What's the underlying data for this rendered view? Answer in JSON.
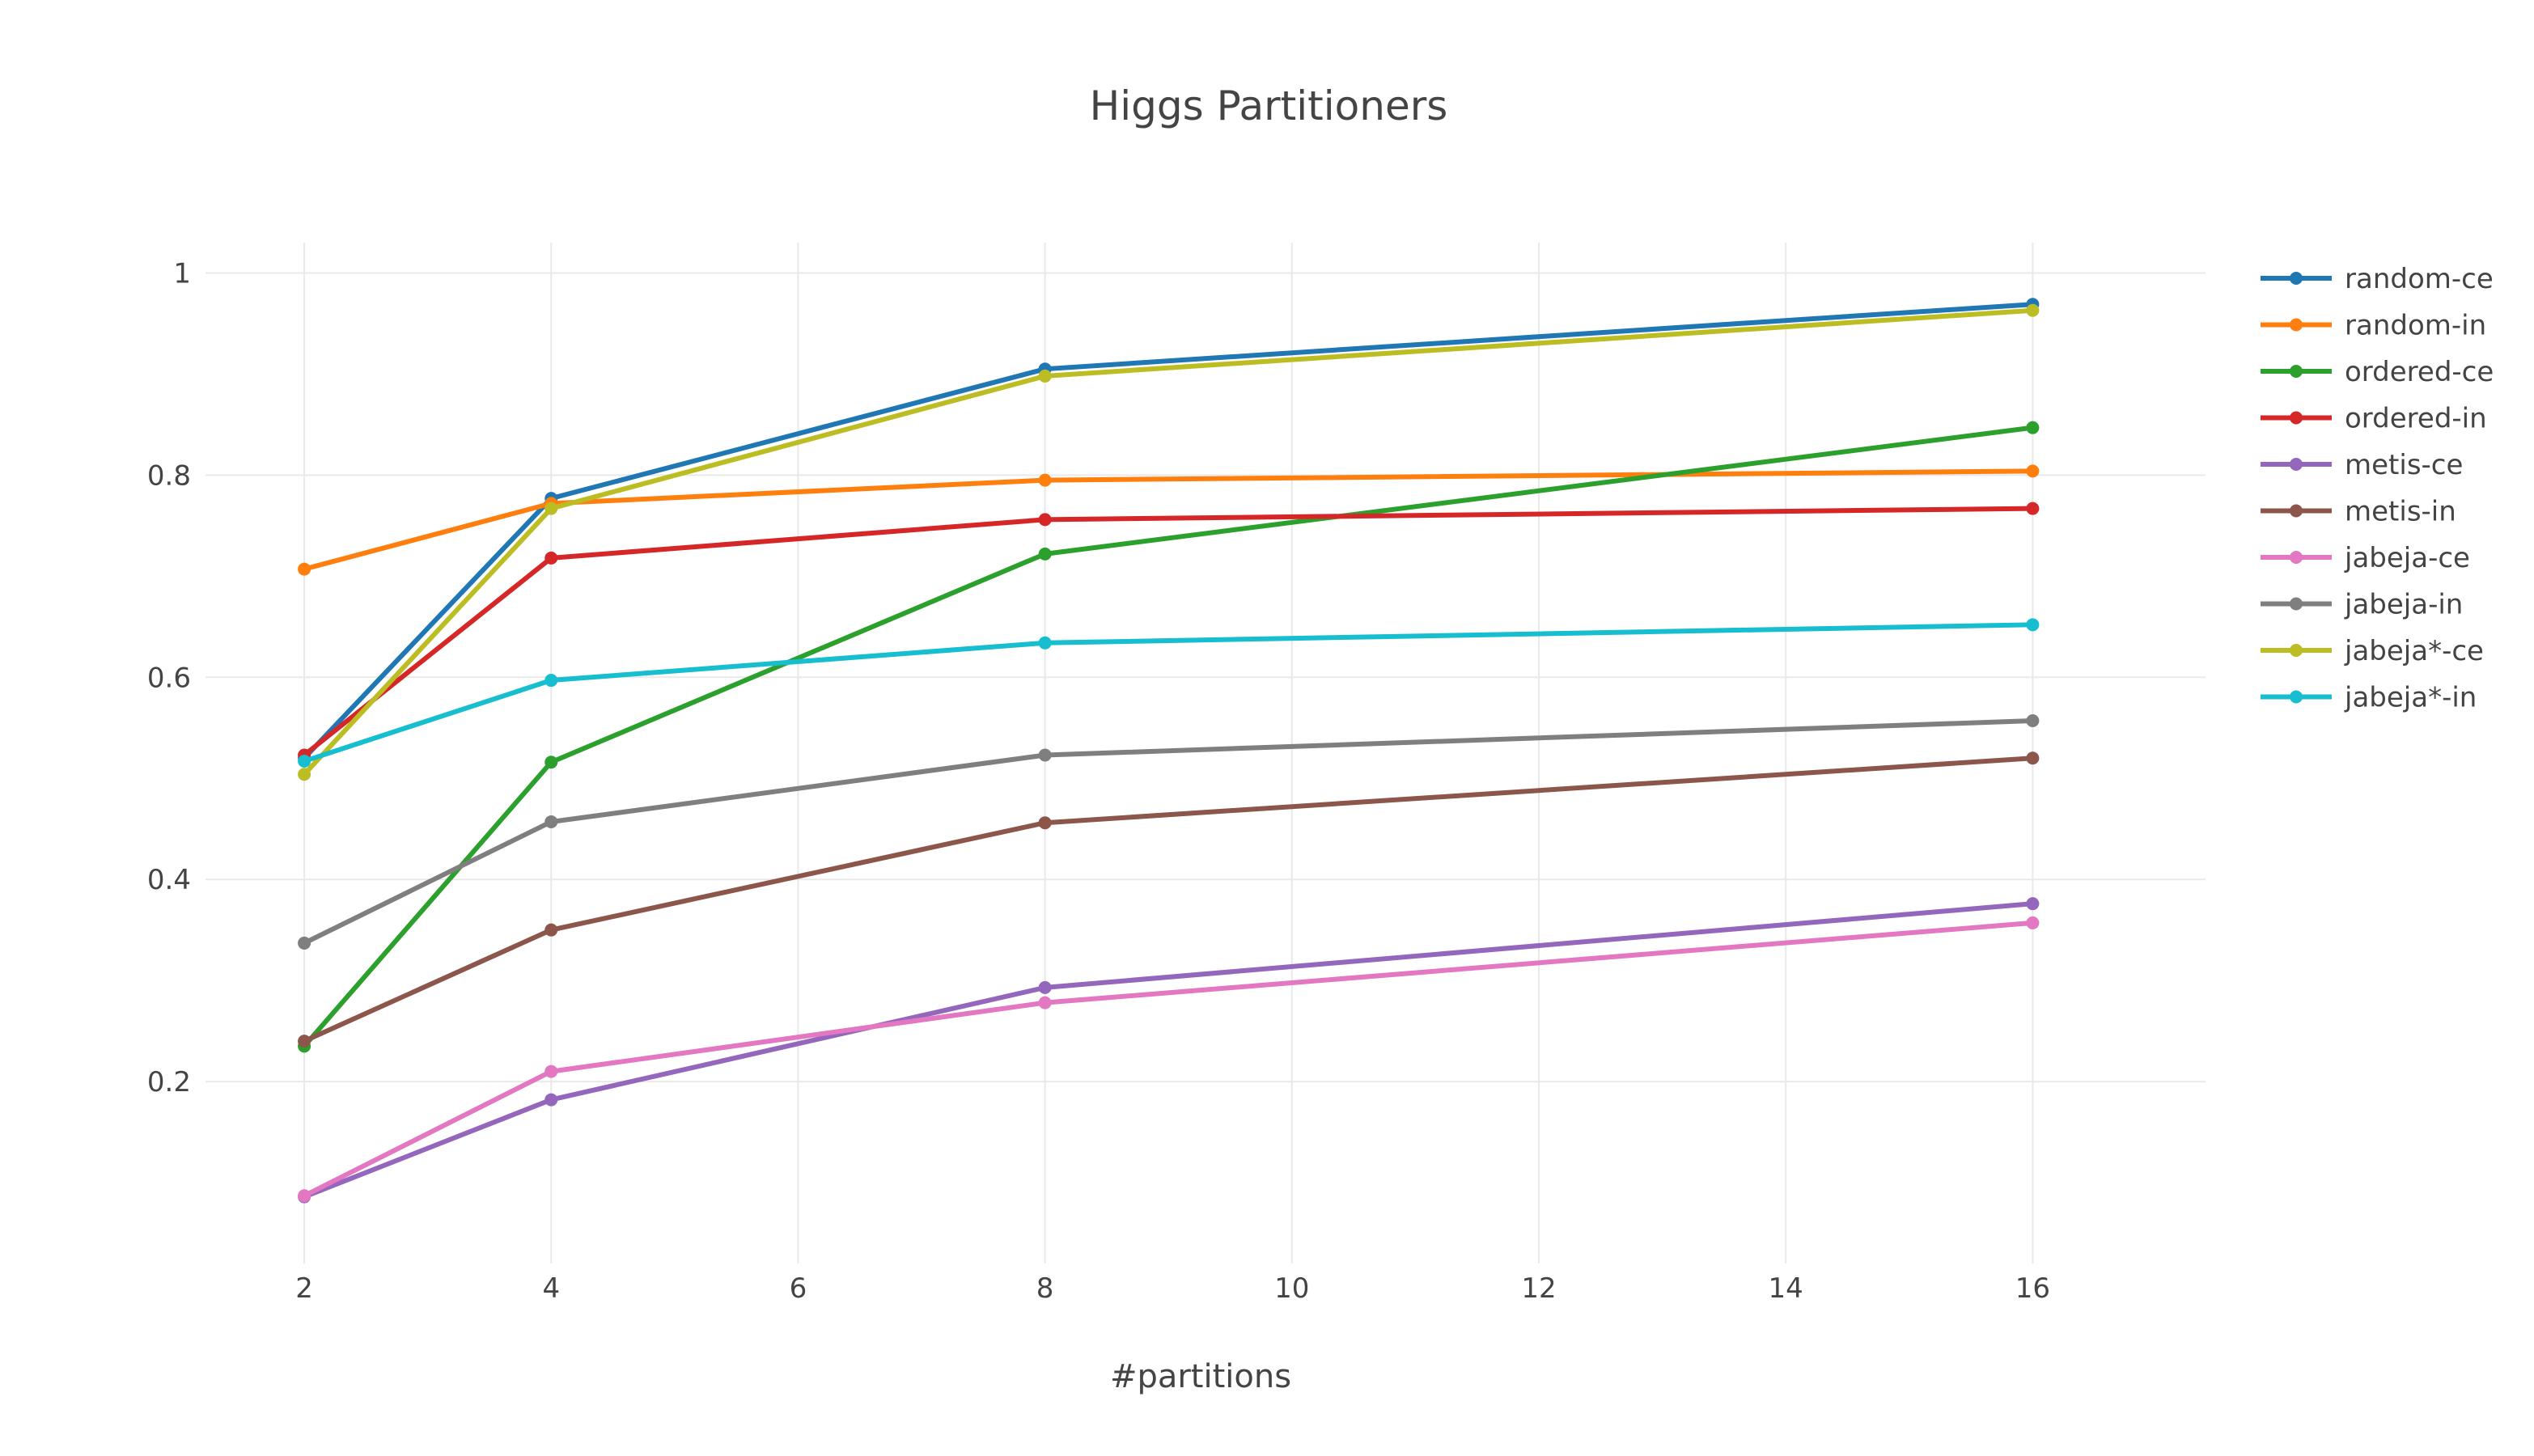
{
  "chart_data": {
    "type": "line",
    "title": "Higgs Partitioners",
    "xlabel": "#partitions",
    "ylabel": "",
    "xlim": [
      1.2,
      17.4
    ],
    "ylim": [
      0.02,
      1.03
    ],
    "xticks": [
      2,
      4,
      6,
      8,
      10,
      12,
      14,
      16
    ],
    "xtick_labels": [
      "2",
      "4",
      "6",
      "8",
      "10",
      "12",
      "14",
      "16"
    ],
    "yticks": [
      0.2,
      0.4,
      0.6,
      0.8,
      1
    ],
    "ytick_labels": [
      "0.2",
      "0.4",
      "0.6",
      "0.8",
      "1"
    ],
    "grid": true,
    "legend_position": "right",
    "x": [
      2,
      4,
      8,
      16
    ],
    "series": [
      {
        "name": "random-ce",
        "color": "#1f77b4",
        "values": [
          0.52,
          0.777,
          0.905,
          0.969
        ]
      },
      {
        "name": "random-in",
        "color": "#ff7f0e",
        "values": [
          0.707,
          0.772,
          0.795,
          0.804
        ]
      },
      {
        "name": "ordered-ce",
        "color": "#2ca02c",
        "values": [
          0.235,
          0.516,
          0.722,
          0.847
        ]
      },
      {
        "name": "ordered-in",
        "color": "#d62728",
        "values": [
          0.523,
          0.718,
          0.756,
          0.767
        ]
      },
      {
        "name": "metis-ce",
        "color": "#9467bd",
        "values": [
          0.086,
          0.182,
          0.293,
          0.376
        ]
      },
      {
        "name": "metis-in",
        "color": "#8c564b",
        "values": [
          0.24,
          0.35,
          0.456,
          0.52
        ]
      },
      {
        "name": "jabeja-ce",
        "color": "#e377c2",
        "values": [
          0.087,
          0.21,
          0.278,
          0.357
        ]
      },
      {
        "name": "jabeja-in",
        "color": "#7f7f7f",
        "values": [
          0.337,
          0.457,
          0.523,
          0.557
        ]
      },
      {
        "name": "jabeja*-ce",
        "color": "#bcbd22",
        "values": [
          0.504,
          0.767,
          0.898,
          0.963
        ]
      },
      {
        "name": "jabeja*-in",
        "color": "#17becf",
        "values": [
          0.517,
          0.597,
          0.634,
          0.652
        ]
      }
    ]
  }
}
